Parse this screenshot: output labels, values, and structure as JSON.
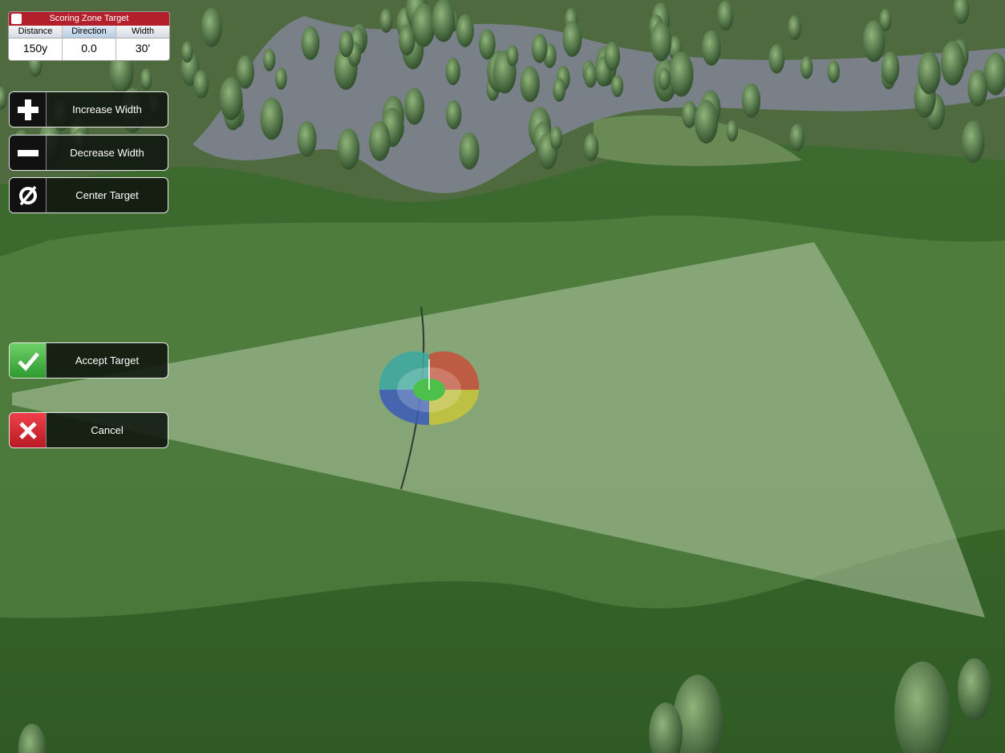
{
  "panel": {
    "title": "Scoring Zone Target",
    "headers": [
      "Distance",
      "Direction",
      "Width"
    ],
    "values": [
      "150y",
      "0.0",
      "30'"
    ]
  },
  "buttons": [
    {
      "label": "Increase Width"
    },
    {
      "label": "Decrease Width"
    },
    {
      "label": "Center Target"
    },
    {
      "label": "Accept Target"
    },
    {
      "label": "Cancel"
    }
  ]
}
